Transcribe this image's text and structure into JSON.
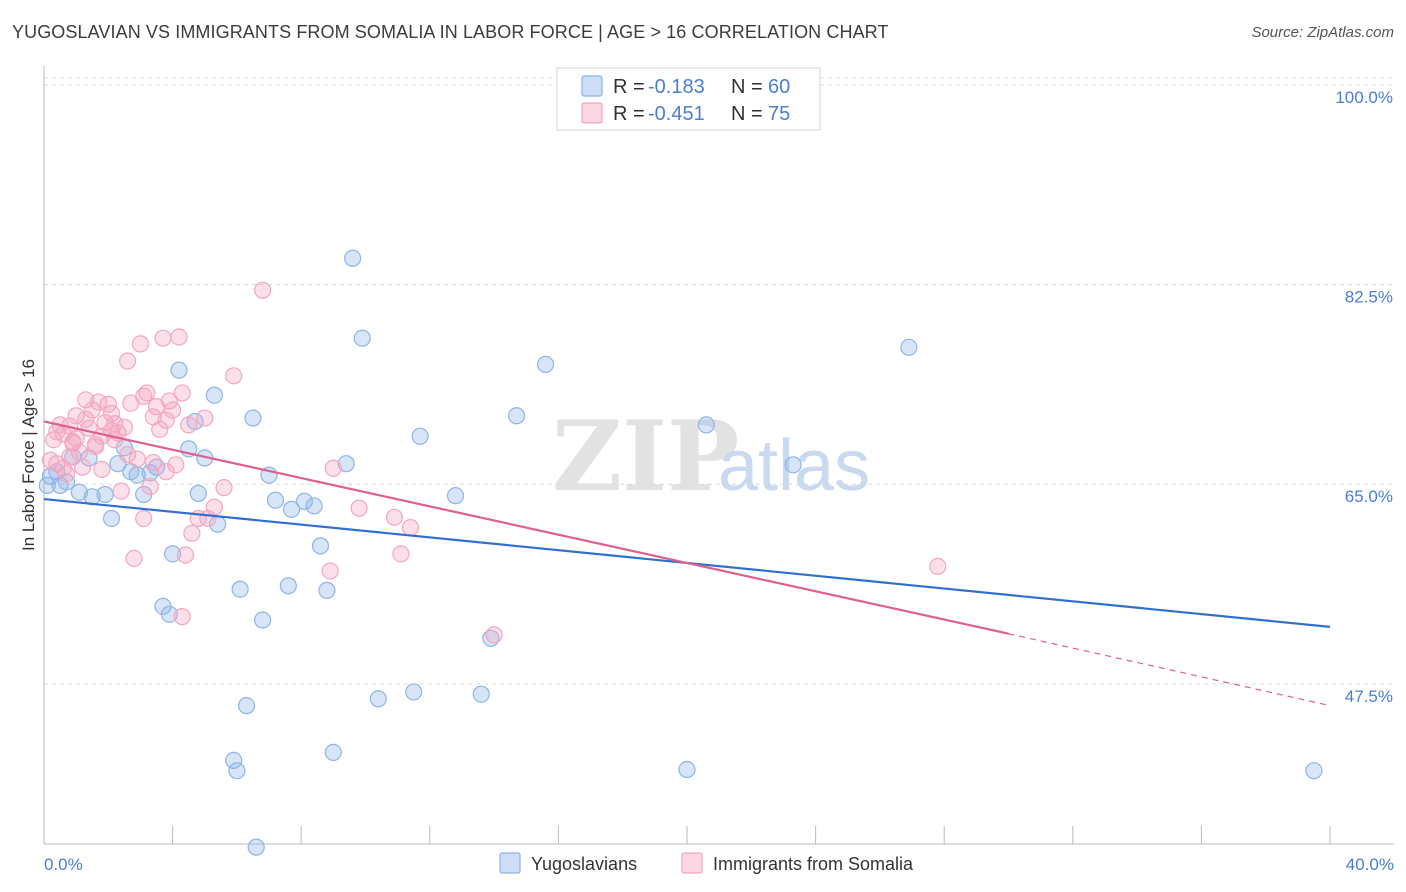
{
  "title": "YUGOSLAVIAN VS IMMIGRANTS FROM SOMALIA IN LABOR FORCE | AGE > 16 CORRELATION CHART",
  "source": "Source: ZipAtlas.com",
  "watermark": {
    "zip": "ZIP",
    "atlas": "atlas"
  },
  "stats": [
    {
      "r_label": "R =",
      "r": "-0.183",
      "n_label": "N =",
      "n": "60",
      "color": "#8fb4e8"
    },
    {
      "r_label": "R =",
      "r": "-0.451",
      "n_label": "N =",
      "n": "75",
      "color": "#f4a6c0"
    }
  ],
  "legend": [
    {
      "name": "Yugoslavians",
      "color": "#8fb4e8"
    },
    {
      "name": "Immigrants from Somalia",
      "color": "#f4a6c0"
    }
  ],
  "chart_data": {
    "type": "scatter",
    "title": "YUGOSLAVIAN VS IMMIGRANTS FROM SOMALIA IN LABOR FORCE | AGE > 16 CORRELATION CHART",
    "xlabel": "",
    "ylabel": "In Labor Force | Age > 16",
    "xlim": [
      0,
      40
    ],
    "ylim": [
      34,
      102
    ],
    "x_tick_labels": [
      "0.0%",
      "40.0%"
    ],
    "y_ticks": [
      47.5,
      65.0,
      82.5,
      100.0
    ],
    "y_tick_labels": [
      "47.5%",
      "65.0%",
      "82.5%",
      "100.0%"
    ],
    "grid": true,
    "series": [
      {
        "name": "Yugoslavians",
        "color": "#8fb4e8",
        "line_color": "#2f6fd1",
        "trend": {
          "x0": 0,
          "y0": 63.7,
          "x1": 40,
          "y1": 52.5
        },
        "points": [
          [
            0.2,
            65.7
          ],
          [
            0.4,
            66.1
          ],
          [
            0.5,
            64.9
          ],
          [
            0.7,
            65.2
          ],
          [
            0.9,
            67.4
          ],
          [
            1.1,
            64.3
          ],
          [
            1.4,
            67.3
          ],
          [
            1.5,
            63.9
          ],
          [
            1.9,
            64.1
          ],
          [
            2.1,
            62.0
          ],
          [
            2.3,
            66.8
          ],
          [
            2.5,
            68.2
          ],
          [
            2.7,
            66.1
          ],
          [
            2.9,
            65.8
          ],
          [
            3.1,
            64.1
          ],
          [
            3.3,
            66.0
          ],
          [
            3.5,
            66.5
          ],
          [
            3.7,
            54.3
          ],
          [
            3.9,
            53.6
          ],
          [
            4.0,
            58.9
          ],
          [
            4.2,
            75.0
          ],
          [
            4.5,
            68.1
          ],
          [
            4.7,
            70.5
          ],
          [
            4.8,
            64.2
          ],
          [
            5.0,
            67.3
          ],
          [
            5.3,
            72.8
          ],
          [
            5.4,
            61.5
          ],
          [
            5.9,
            40.8
          ],
          [
            6.0,
            39.9
          ],
          [
            6.1,
            55.8
          ],
          [
            6.3,
            45.6
          ],
          [
            6.5,
            70.8
          ],
          [
            6.6,
            33.2
          ],
          [
            6.8,
            53.1
          ],
          [
            7.0,
            65.8
          ],
          [
            7.2,
            63.6
          ],
          [
            7.6,
            56.1
          ],
          [
            7.7,
            62.8
          ],
          [
            8.1,
            63.5
          ],
          [
            8.4,
            63.1
          ],
          [
            8.6,
            59.6
          ],
          [
            8.8,
            55.7
          ],
          [
            9.0,
            41.5
          ],
          [
            9.4,
            66.8
          ],
          [
            9.6,
            84.8
          ],
          [
            9.9,
            77.8
          ],
          [
            10.4,
            46.2
          ],
          [
            11.5,
            46.8
          ],
          [
            11.7,
            69.2
          ],
          [
            12.8,
            64.0
          ],
          [
            13.6,
            46.6
          ],
          [
            13.9,
            51.5
          ],
          [
            14.7,
            71.0
          ],
          [
            15.6,
            75.5
          ],
          [
            20.0,
            40.0
          ],
          [
            20.6,
            70.2
          ],
          [
            23.3,
            66.7
          ],
          [
            26.9,
            77.0
          ],
          [
            39.5,
            39.9
          ],
          [
            0.1,
            64.9
          ]
        ]
      },
      {
        "name": "Immigrants from Somalia",
        "color": "#f4a6c0",
        "line_color": "#e0608c",
        "trend": {
          "x0": 0,
          "y0": 70.5,
          "x1": 30,
          "y1": 51.9
        },
        "trend_dash": {
          "x0": 30,
          "y0": 51.9,
          "x1": 40,
          "y1": 45.6
        },
        "points": [
          [
            0.2,
            67.1
          ],
          [
            0.3,
            68.9
          ],
          [
            0.4,
            69.6
          ],
          [
            0.5,
            70.2
          ],
          [
            0.6,
            69.4
          ],
          [
            0.7,
            65.9
          ],
          [
            0.8,
            70.1
          ],
          [
            0.9,
            68.7
          ],
          [
            1.0,
            71.0
          ],
          [
            1.1,
            67.8
          ],
          [
            1.2,
            66.5
          ],
          [
            1.3,
            70.7
          ],
          [
            1.4,
            69.9
          ],
          [
            1.5,
            71.5
          ],
          [
            1.6,
            68.3
          ],
          [
            1.7,
            72.2
          ],
          [
            1.8,
            69.2
          ],
          [
            1.9,
            70.4
          ],
          [
            2.0,
            72.0
          ],
          [
            2.1,
            71.2
          ],
          [
            2.2,
            70.3
          ],
          [
            2.3,
            69.5
          ],
          [
            2.4,
            64.4
          ],
          [
            2.5,
            70.0
          ],
          [
            2.6,
            75.8
          ],
          [
            2.7,
            72.1
          ],
          [
            2.8,
            58.5
          ],
          [
            2.9,
            67.2
          ],
          [
            3.0,
            77.3
          ],
          [
            3.1,
            62.0
          ],
          [
            3.2,
            73.0
          ],
          [
            3.3,
            64.8
          ],
          [
            3.4,
            66.9
          ],
          [
            3.5,
            71.8
          ],
          [
            3.6,
            69.8
          ],
          [
            3.7,
            77.8
          ],
          [
            3.8,
            70.6
          ],
          [
            3.9,
            72.3
          ],
          [
            4.0,
            71.5
          ],
          [
            4.1,
            66.7
          ],
          [
            4.2,
            77.9
          ],
          [
            4.3,
            53.4
          ],
          [
            4.4,
            58.8
          ],
          [
            4.5,
            70.2
          ],
          [
            4.8,
            62.0
          ],
          [
            5.1,
            62.0
          ],
          [
            5.3,
            63.0
          ],
          [
            5.6,
            64.7
          ],
          [
            5.9,
            74.5
          ],
          [
            6.8,
            82.0
          ],
          [
            8.9,
            57.4
          ],
          [
            9.0,
            66.4
          ],
          [
            9.8,
            62.9
          ],
          [
            10.9,
            62.1
          ],
          [
            11.1,
            58.9
          ],
          [
            11.4,
            61.2
          ],
          [
            14.0,
            51.8
          ],
          [
            27.8,
            57.8
          ],
          [
            0.4,
            66.8
          ],
          [
            0.8,
            67.4
          ],
          [
            1.6,
            68.5
          ],
          [
            2.2,
            68.9
          ],
          [
            3.1,
            72.7
          ],
          [
            4.3,
            73.0
          ],
          [
            5.0,
            70.8
          ],
          [
            1.0,
            69.0
          ],
          [
            1.8,
            66.3
          ],
          [
            2.6,
            67.6
          ],
          [
            3.4,
            70.9
          ],
          [
            1.3,
            72.4
          ],
          [
            0.6,
            66.4
          ],
          [
            0.9,
            68.6
          ],
          [
            2.1,
            69.7
          ],
          [
            3.8,
            66.1
          ],
          [
            4.6,
            60.7
          ]
        ]
      }
    ]
  }
}
